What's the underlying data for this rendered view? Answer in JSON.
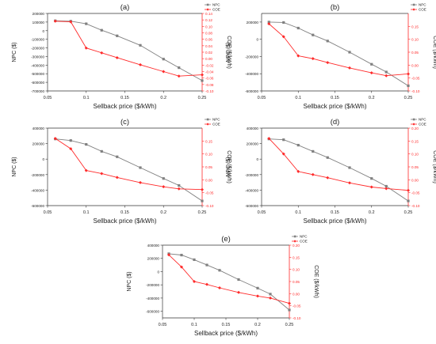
{
  "figure": {
    "colors": {
      "npc": "#808080",
      "coe": "#ff2a2a",
      "axis": "#333333",
      "coe_axis": "#ff2a2a",
      "text": "#222222"
    },
    "icons": {
      "npc_marker": "square-marker",
      "coe_marker": "diamond-marker"
    }
  },
  "chart_data": [
    {
      "type": "line",
      "title": "(a)",
      "xlabel": "Sellback price ($/kWh)",
      "ylabel": "NPC ($)",
      "y2label": "COE ($/kWh)",
      "xlim": [
        0.05,
        0.25
      ],
      "xticks": [
        "0.05",
        "0.1",
        "0.15",
        "0.2",
        "0.25"
      ],
      "ylim": [
        -700000,
        200000
      ],
      "yticks": [
        "200000",
        "100000",
        "0",
        "-100000",
        "-200000",
        "-300000",
        "-400000",
        "-500000",
        "-600000",
        "-700000"
      ],
      "y2lim": [
        -0.1,
        0.14
      ],
      "y2ticks": [
        "0.14",
        "0.12",
        "0.10",
        "0.08",
        "0.06",
        "0.04",
        "0.02",
        "0.00",
        "-0.02",
        "-0.04",
        "-0.06",
        "-0.08",
        "-0.10"
      ],
      "legend": [
        "NPC",
        "COE"
      ],
      "legend_position": "top-right",
      "x": [
        0.06,
        0.08,
        0.1,
        0.12,
        0.14,
        0.17,
        0.2,
        0.22,
        0.25
      ],
      "series": [
        {
          "name": "NPC",
          "axis": "left",
          "values": [
            115000,
            110000,
            80000,
            5000,
            -60000,
            -170000,
            -330000,
            -430000,
            -580000
          ]
        },
        {
          "name": "COE",
          "axis": "right",
          "values": [
            0.116,
            0.114,
            0.033,
            0.018,
            0.003,
            -0.019,
            -0.04,
            -0.054,
            -0.05
          ]
        }
      ]
    },
    {
      "type": "line",
      "title": "(b)",
      "xlabel": "Sellback price ($/kWh)",
      "ylabel": "NPC ($)",
      "y2label": "COE ($/kWh)",
      "xlim": [
        0.05,
        0.25
      ],
      "xticks": [
        "0.05",
        "0.1",
        "0.15",
        "0.2",
        "0.25"
      ],
      "ylim": [
        -600000,
        300000
      ],
      "yticks": [
        "200000",
        "0",
        "-200000",
        "-400000",
        "-600000"
      ],
      "y2lim": [
        -0.1,
        0.2
      ],
      "y2ticks": [
        "0.15",
        "0.10",
        "0.05",
        "0.00",
        "-0.05",
        "-0.10"
      ],
      "legend": [
        "NPC",
        "COE"
      ],
      "legend_position": "top-right",
      "x": [
        0.06,
        0.08,
        0.1,
        0.12,
        0.14,
        0.17,
        0.2,
        0.22,
        0.25
      ],
      "series": [
        {
          "name": "NPC",
          "axis": "left",
          "values": [
            200000,
            195000,
            130000,
            50000,
            -20000,
            -150000,
            -290000,
            -380000,
            -540000
          ]
        },
        {
          "name": "COE",
          "axis": "right",
          "values": [
            0.16,
            0.11,
            0.036,
            0.025,
            0.01,
            -0.011,
            -0.03,
            -0.041,
            -0.034
          ]
        }
      ]
    },
    {
      "type": "line",
      "title": "(c)",
      "xlabel": "Sellback price ($/kWh)",
      "ylabel": "NPC ($)",
      "y2label": "COE ($/kWh)",
      "xlim": [
        0.05,
        0.25
      ],
      "xticks": [
        "0.05",
        "0.1",
        "0.15",
        "0.2",
        "0.25"
      ],
      "ylim": [
        -600000,
        400000
      ],
      "yticks": [
        "400000",
        "200000",
        "0",
        "-200000",
        "-400000",
        "-600000"
      ],
      "y2lim": [
        -0.1,
        0.2
      ],
      "y2ticks": [
        "0.15",
        "0.10",
        "0.05",
        "0.00",
        "-0.05",
        "-0.10"
      ],
      "legend": [
        "NPC",
        "COE"
      ],
      "legend_position": "top-right",
      "x": [
        0.06,
        0.08,
        0.1,
        0.12,
        0.14,
        0.17,
        0.2,
        0.22,
        0.25
      ],
      "series": [
        {
          "name": "NPC",
          "axis": "left",
          "values": [
            260000,
            240000,
            190000,
            100000,
            30000,
            -110000,
            -250000,
            -340000,
            -540000
          ]
        },
        {
          "name": "COE",
          "axis": "right",
          "values": [
            0.16,
            0.12,
            0.036,
            0.024,
            0.009,
            -0.011,
            -0.027,
            -0.035,
            -0.038
          ]
        }
      ]
    },
    {
      "type": "line",
      "title": "(d)",
      "xlabel": "Sellback price ($/kWh)",
      "ylabel": "NPC ($)",
      "y2label": "COE ($/kWh)",
      "xlim": [
        0.05,
        0.25
      ],
      "xticks": [
        "0.05",
        "0.1",
        "0.15",
        "0.2",
        "0.25"
      ],
      "ylim": [
        -600000,
        400000
      ],
      "yticks": [
        "400000",
        "200000",
        "0",
        "-200000",
        "-400000",
        "-600000"
      ],
      "y2lim": [
        -0.1,
        0.2
      ],
      "y2ticks": [
        "0.20",
        "0.15",
        "0.10",
        "0.05",
        "0.00",
        "-0.05",
        "-0.10"
      ],
      "legend": [
        "NPC",
        "COE"
      ],
      "legend_position": "top-right",
      "x": [
        0.06,
        0.08,
        0.1,
        0.12,
        0.14,
        0.17,
        0.2,
        0.22,
        0.25
      ],
      "series": [
        {
          "name": "NPC",
          "axis": "left",
          "values": [
            260000,
            250000,
            180000,
            100000,
            20000,
            -110000,
            -250000,
            -350000,
            -540000
          ]
        },
        {
          "name": "COE",
          "axis": "right",
          "values": [
            0.16,
            0.1,
            0.032,
            0.02,
            0.008,
            -0.012,
            -0.028,
            -0.034,
            -0.041
          ]
        }
      ]
    },
    {
      "type": "line",
      "title": "(e)",
      "xlabel": "Sellback price ($/kWh)",
      "ylabel": "NPC ($)",
      "y2label": "COE ($/kWh)",
      "xlim": [
        0.05,
        0.25
      ],
      "xticks": [
        "0.05",
        "0.1",
        "0.15",
        "0.2",
        "0.25"
      ],
      "ylim": [
        -700000,
        400000
      ],
      "yticks": [
        "400000",
        "200000",
        "0",
        "-200000",
        "-400000",
        "-600000"
      ],
      "y2lim": [
        -0.1,
        0.2
      ],
      "y2ticks": [
        "0.20",
        "0.15",
        "0.10",
        "0.05",
        "0.00",
        "-0.05",
        "-0.10"
      ],
      "legend": [
        "NPC",
        "COE"
      ],
      "legend_position": "top-right",
      "x": [
        0.06,
        0.08,
        0.1,
        0.12,
        0.14,
        0.17,
        0.2,
        0.22,
        0.25
      ],
      "series": [
        {
          "name": "NPC",
          "axis": "left",
          "values": [
            270000,
            250000,
            180000,
            100000,
            20000,
            -120000,
            -250000,
            -340000,
            -580000
          ]
        },
        {
          "name": "COE",
          "axis": "right",
          "values": [
            0.16,
            0.11,
            0.05,
            0.038,
            0.024,
            0.005,
            -0.01,
            -0.018,
            -0.04
          ]
        }
      ]
    }
  ]
}
